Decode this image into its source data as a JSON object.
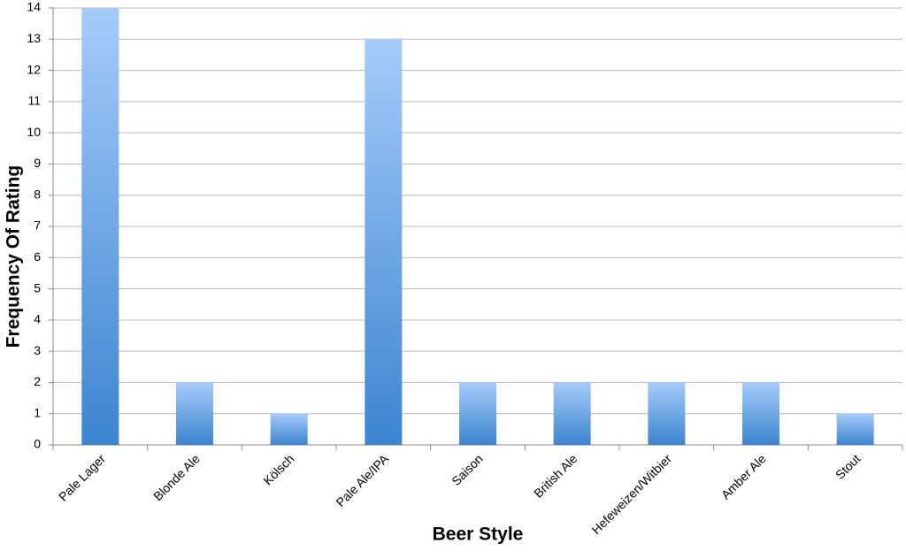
{
  "chart_data": {
    "type": "bar",
    "x_label": "Beer Style",
    "y_label": "Frequency Of Rating",
    "categories": [
      "Pale Lager",
      "Blonde Ale",
      "Kölsch",
      "Pale Ale/IPA",
      "Saison",
      "British Ale",
      "Hefeweizen/Witbier",
      "Amber Ale",
      "Stout"
    ],
    "values": [
      14,
      2,
      1,
      13,
      2,
      2,
      2,
      2,
      1
    ],
    "color": [
      "#a6cbfa",
      "#3d84cf"
    ],
    "ylim": [
      0,
      14
    ],
    "yticks": [
      0,
      1,
      2,
      3,
      4,
      5,
      6,
      7,
      8,
      9,
      10,
      11,
      12,
      13,
      14
    ],
    "grid": true
  }
}
